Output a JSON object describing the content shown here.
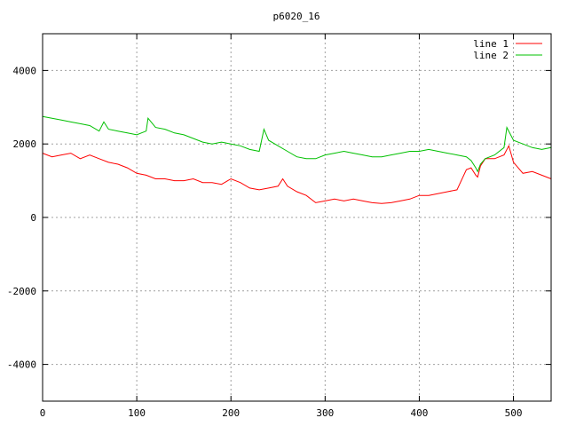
{
  "chart_data": {
    "type": "line",
    "title": "p6020_16",
    "xlabel": "",
    "ylabel": "",
    "xlim": [
      0,
      540
    ],
    "ylim": [
      -5000,
      5000
    ],
    "x_ticks": [
      0,
      100,
      200,
      300,
      400,
      500
    ],
    "y_ticks": [
      -4000,
      -2000,
      0,
      2000,
      4000
    ],
    "grid": true,
    "legend_position": "top-right",
    "series": [
      {
        "name": "line 1",
        "color": "#ff0000",
        "x": [
          0,
          10,
          20,
          30,
          40,
          50,
          60,
          70,
          80,
          90,
          100,
          110,
          120,
          130,
          140,
          150,
          160,
          170,
          180,
          190,
          200,
          210,
          220,
          230,
          240,
          250,
          255,
          260,
          270,
          280,
          290,
          300,
          310,
          320,
          330,
          340,
          350,
          360,
          370,
          380,
          390,
          400,
          410,
          420,
          430,
          440,
          450,
          455,
          460,
          462,
          465,
          470,
          480,
          490,
          495,
          500,
          510,
          520,
          530,
          540
        ],
        "y": [
          1750,
          1650,
          1700,
          1750,
          1600,
          1700,
          1600,
          1500,
          1450,
          1350,
          1200,
          1150,
          1050,
          1050,
          1000,
          1000,
          1050,
          950,
          950,
          900,
          1050,
          950,
          800,
          750,
          800,
          850,
          1050,
          850,
          700,
          600,
          400,
          450,
          500,
          450,
          500,
          450,
          400,
          380,
          400,
          450,
          500,
          600,
          600,
          650,
          700,
          750,
          1300,
          1350,
          1150,
          1100,
          1400,
          1600,
          1600,
          1700,
          1950,
          1500,
          1200,
          1250,
          1150,
          1050
        ]
      },
      {
        "name": "line 2",
        "color": "#00c000",
        "x": [
          0,
          10,
          20,
          30,
          40,
          50,
          60,
          65,
          70,
          80,
          90,
          100,
          110,
          112,
          120,
          130,
          140,
          150,
          160,
          170,
          180,
          190,
          200,
          210,
          220,
          230,
          235,
          240,
          250,
          260,
          270,
          280,
          290,
          300,
          310,
          320,
          330,
          340,
          350,
          360,
          370,
          380,
          390,
          400,
          410,
          420,
          430,
          440,
          450,
          455,
          460,
          462,
          465,
          470,
          480,
          490,
          493,
          500,
          510,
          520,
          530,
          540
        ],
        "y": [
          2750,
          2700,
          2650,
          2600,
          2550,
          2500,
          2350,
          2600,
          2400,
          2350,
          2300,
          2250,
          2350,
          2700,
          2450,
          2400,
          2300,
          2250,
          2150,
          2050,
          2000,
          2050,
          2000,
          1950,
          1850,
          1800,
          2400,
          2100,
          1950,
          1800,
          1650,
          1600,
          1600,
          1700,
          1750,
          1800,
          1750,
          1700,
          1650,
          1650,
          1700,
          1750,
          1800,
          1800,
          1850,
          1800,
          1750,
          1700,
          1650,
          1550,
          1350,
          1250,
          1450,
          1600,
          1700,
          1900,
          2450,
          2100,
          2000,
          1900,
          1850,
          1900
        ]
      }
    ]
  }
}
